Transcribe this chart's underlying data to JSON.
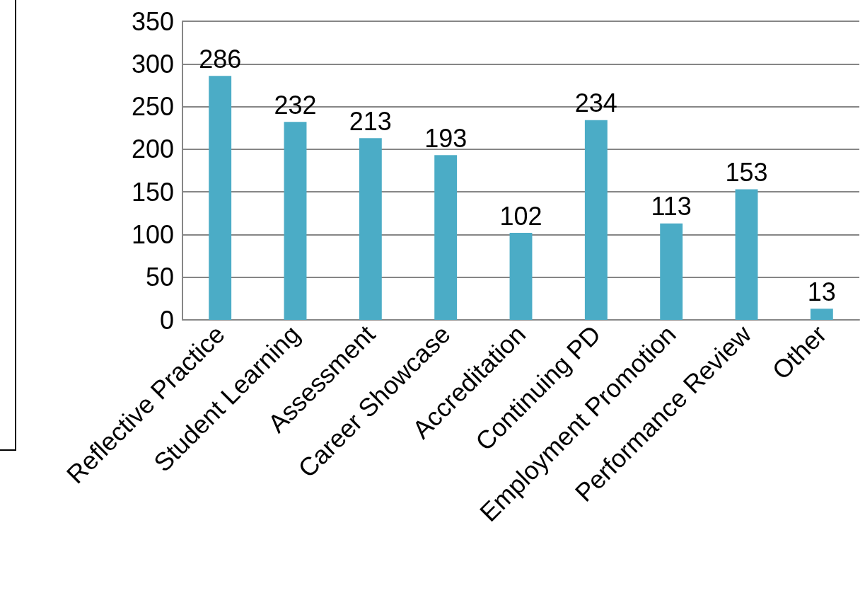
{
  "chart_data": {
    "type": "bar",
    "categories": [
      "Reflective Practice",
      "Student Learning",
      "Assessment",
      "Career Showcase",
      "Accreditation",
      "Continuing PD",
      "Employment Promotion",
      "Performance Review",
      "Other"
    ],
    "values": [
      286,
      232,
      213,
      193,
      102,
      234,
      113,
      153,
      13
    ],
    "color": "#4bacc6",
    "ylim": [
      0,
      350
    ],
    "yticks": [
      0,
      50,
      100,
      150,
      200,
      250,
      300,
      350
    ],
    "grid": "y",
    "data_labels": true
  }
}
